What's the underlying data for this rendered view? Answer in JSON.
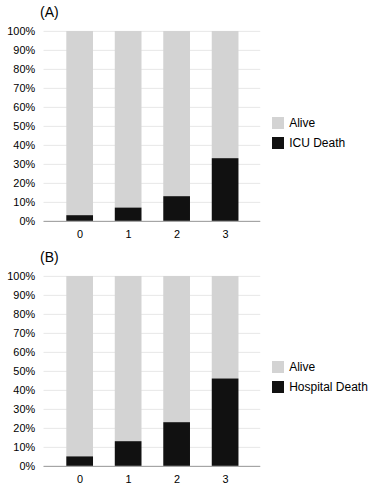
{
  "chart_data": [
    {
      "type": "bar",
      "title": "(A)",
      "stacked": true,
      "legend": "right",
      "grid": true,
      "categories": [
        0,
        1,
        2,
        3
      ],
      "series": [
        {
          "name": "Alive",
          "color": "#d3d3d3",
          "values": [
            97,
            93,
            87,
            67
          ]
        },
        {
          "name": "ICU Death",
          "color": "#111111",
          "values": [
            3,
            7,
            13,
            33
          ]
        }
      ],
      "ylim": [
        0,
        100
      ],
      "yticks": [
        {
          "value": 0,
          "label": "0%"
        },
        {
          "value": 10,
          "label": "10%"
        },
        {
          "value": 20,
          "label": "20%"
        },
        {
          "value": 30,
          "label": "30%"
        },
        {
          "value": 40,
          "label": "40%"
        },
        {
          "value": 50,
          "label": "50%"
        },
        {
          "value": 60,
          "label": "60%"
        },
        {
          "value": 70,
          "label": "70%"
        },
        {
          "value": 80,
          "label": "80%"
        },
        {
          "value": 90,
          "label": "90%"
        },
        {
          "value": 100,
          "label": "100%"
        }
      ]
    },
    {
      "type": "bar",
      "title": "(B)",
      "stacked": true,
      "legend": "right",
      "grid": true,
      "categories": [
        0,
        1,
        2,
        3
      ],
      "series": [
        {
          "name": "Alive",
          "color": "#d3d3d3",
          "values": [
            95,
            87,
            77,
            54
          ]
        },
        {
          "name": "Hospital Death",
          "color": "#111111",
          "values": [
            5,
            13,
            23,
            46
          ]
        }
      ],
      "ylim": [
        0,
        100
      ],
      "yticks": [
        {
          "value": 0,
          "label": "0%"
        },
        {
          "value": 10,
          "label": "10%"
        },
        {
          "value": 20,
          "label": "20%"
        },
        {
          "value": 30,
          "label": "30%"
        },
        {
          "value": 40,
          "label": "40%"
        },
        {
          "value": 50,
          "label": "50%"
        },
        {
          "value": 60,
          "label": "60%"
        },
        {
          "value": 70,
          "label": "70%"
        },
        {
          "value": 80,
          "label": "80%"
        },
        {
          "value": 90,
          "label": "90%"
        },
        {
          "value": 100,
          "label": "100%"
        }
      ]
    }
  ]
}
